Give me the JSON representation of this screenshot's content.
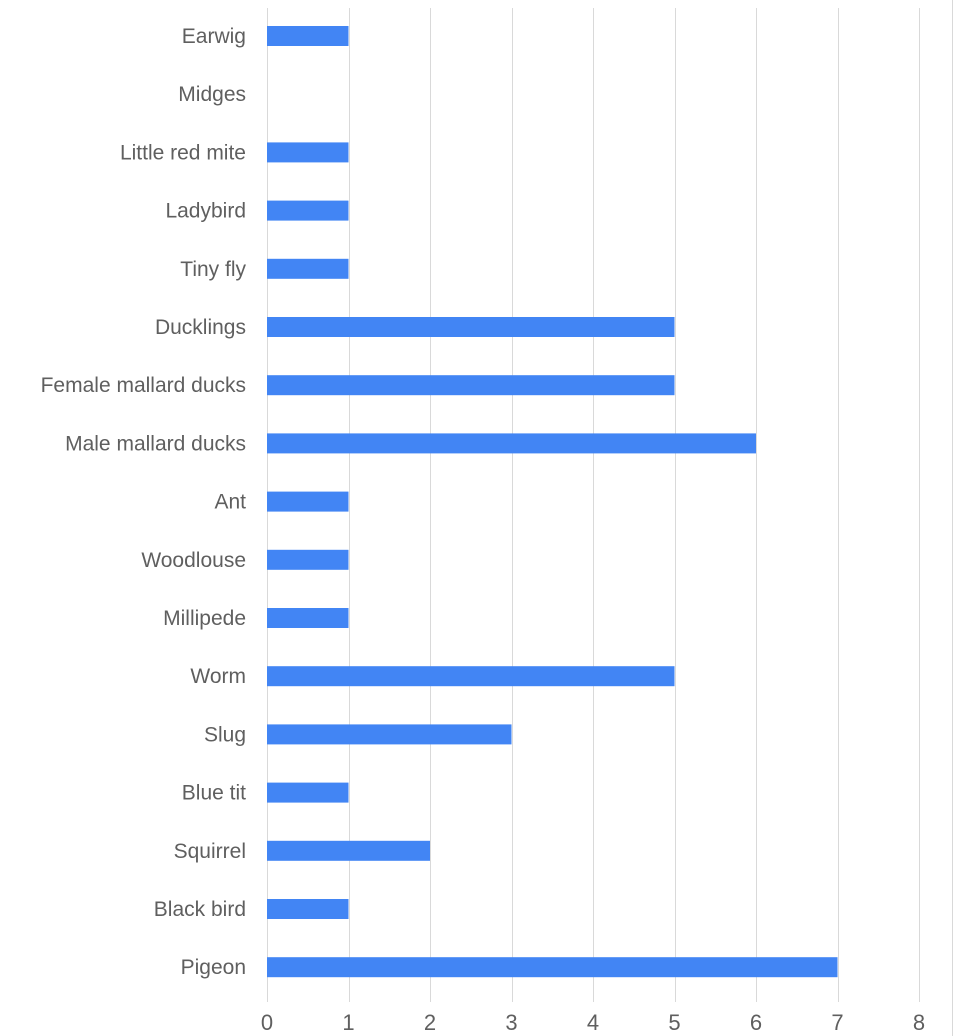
{
  "chart_data": {
    "type": "bar",
    "orientation": "horizontal",
    "categories": [
      "Earwig",
      "Midges",
      "Little red mite",
      "Ladybird",
      "Tiny fly",
      "Ducklings",
      "Female mallard ducks",
      "Male mallard ducks",
      "Ant",
      "Woodlouse",
      "Millipede",
      "Worm",
      "Slug",
      "Blue tit",
      "Squirrel",
      "Black bird",
      "Pigeon"
    ],
    "values": [
      1,
      0,
      1,
      1,
      1,
      5,
      5,
      6,
      1,
      1,
      1,
      5,
      3,
      1,
      2,
      1,
      7
    ],
    "xticks": [
      "0",
      "1",
      "2",
      "3",
      "4",
      "5",
      "6",
      "7",
      "8"
    ],
    "xlim": [
      0,
      8
    ],
    "grid": "vertical",
    "legend": "none",
    "title": "",
    "xlabel": "",
    "ylabel": "",
    "colors": {
      "bar": "#4285f4",
      "grid": "#d9d9d9",
      "text": "#5f5f5f"
    }
  }
}
